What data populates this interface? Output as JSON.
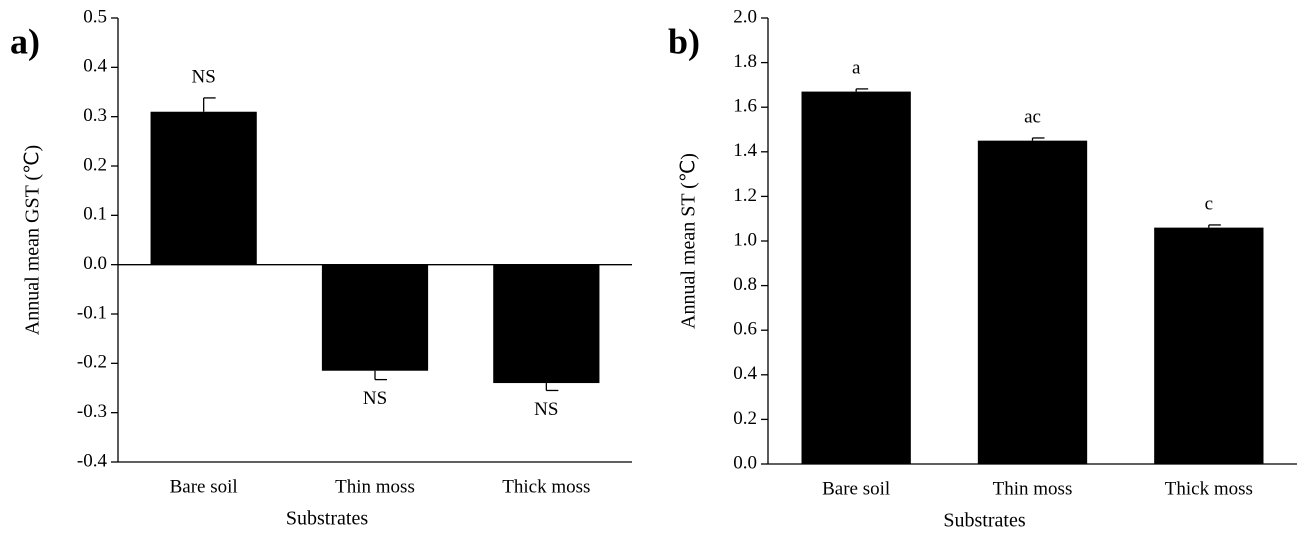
{
  "chart_data": [
    {
      "type": "bar",
      "panel_label": "a)",
      "xlabel": "Substrates",
      "ylabel": "Annual mean GST (℃)",
      "categories": [
        "Bare soil",
        "Thin moss",
        "Thick moss"
      ],
      "values": [
        0.31,
        -0.215,
        -0.24
      ],
      "errors": [
        0.028,
        0.018,
        0.015
      ],
      "annotations": [
        "NS",
        "NS",
        "NS"
      ],
      "color": "#000000",
      "ylim": [
        -0.4,
        0.5
      ],
      "yticks": [
        {
          "value": -0.4,
          "label": "-0.4"
        },
        {
          "value": -0.3,
          "label": "-0.3"
        },
        {
          "value": -0.2,
          "label": "-0.2"
        },
        {
          "value": -0.1,
          "label": "-0.1"
        },
        {
          "value": 0,
          "label": "0.0"
        },
        {
          "value": 0.1,
          "label": "0.1"
        },
        {
          "value": 0.2,
          "label": "0.2"
        },
        {
          "value": 0.3,
          "label": "0.3"
        },
        {
          "value": 0.4,
          "label": "0.4"
        },
        {
          "value": 0.5,
          "label": "0.5"
        }
      ]
    },
    {
      "type": "bar",
      "panel_label": "b)",
      "xlabel": "Substrates",
      "ylabel": "Annual mean ST (℃)",
      "categories": [
        "Bare soil",
        "Thin moss",
        "Thick moss"
      ],
      "values": [
        1.67,
        1.45,
        1.06
      ],
      "errors": [
        0.012,
        0.012,
        0.012
      ],
      "annotations": [
        "a",
        "ac",
        "c"
      ],
      "color": "#000000",
      "ylim": [
        0,
        2.0
      ],
      "yticks": [
        {
          "value": 0,
          "label": "0.0"
        },
        {
          "value": 0.2,
          "label": "0.2"
        },
        {
          "value": 0.4,
          "label": "0.4"
        },
        {
          "value": 0.6,
          "label": "0.6"
        },
        {
          "value": 0.8,
          "label": "0.8"
        },
        {
          "value": 1.0,
          "label": "1.0"
        },
        {
          "value": 1.2,
          "label": "1.2"
        },
        {
          "value": 1.4,
          "label": "1.4"
        },
        {
          "value": 1.6,
          "label": "1.6"
        },
        {
          "value": 1.8,
          "label": "1.8"
        },
        {
          "value": 2.0,
          "label": "2.0"
        }
      ]
    }
  ]
}
